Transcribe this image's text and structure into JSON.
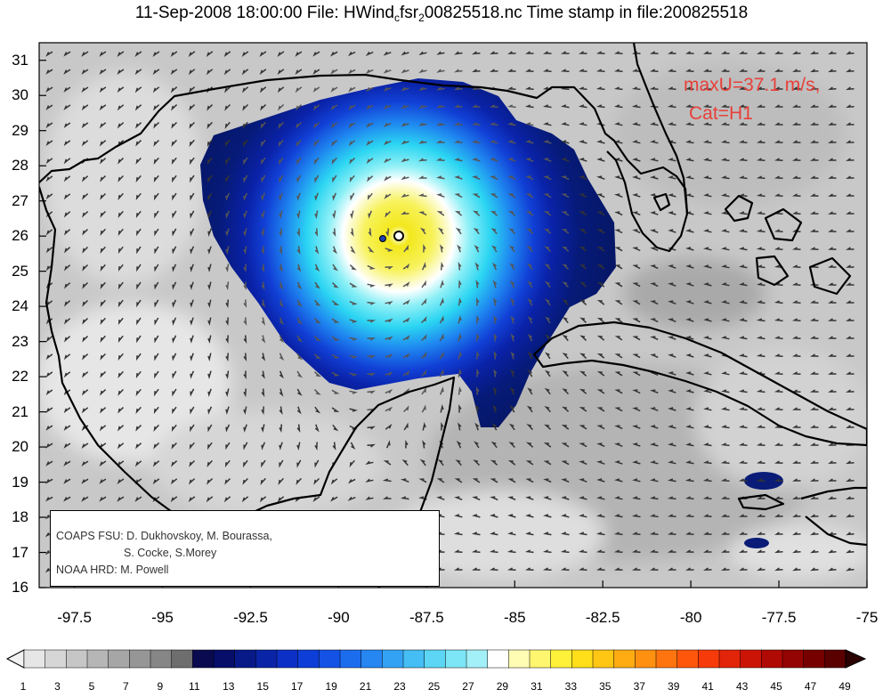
{
  "title": {
    "date_time": "11-Sep-2008 18:00:00",
    "file_label": "File:",
    "file_part1": "HWind",
    "file_sub1": "c",
    "file_part2": "fsr",
    "file_sub2": "2",
    "file_part3": "00825518.nc",
    "stamp_label": "Time stamp in file:",
    "stamp_value": "200825518"
  },
  "y_axis": {
    "ticks": [
      "31",
      "30",
      "29",
      "28",
      "27",
      "26",
      "25",
      "24",
      "23",
      "22",
      "21",
      "20",
      "19",
      "18",
      "17",
      "16"
    ]
  },
  "x_axis": {
    "ticks": [
      "-97.5",
      "-95",
      "-92.5",
      "-90",
      "-87.5",
      "-85",
      "-82.5",
      "-80",
      "-77.5",
      "-75"
    ]
  },
  "annotation": {
    "line1": "maxU=37.1 m/s,",
    "line2": "Cat=H1"
  },
  "credits": {
    "line1": "COAPS FSU: D. Dukhovskoy, M. Bourassa,",
    "line2": "S. Cocke, S.Morey",
    "line3": "NOAA HRD:  M. Powell"
  },
  "colorbar": {
    "labels": [
      "1",
      "3",
      "5",
      "7",
      "9",
      "11",
      "13",
      "15",
      "17",
      "19",
      "21",
      "23",
      "25",
      "27",
      "29",
      "31",
      "33",
      "35",
      "37",
      "39",
      "41",
      "43",
      "45",
      "47",
      "49"
    ]
  },
  "map_view": {
    "lon_range": [
      -98.5,
      -75
    ],
    "lat_range": [
      16,
      31.5
    ],
    "storm_center": {
      "lon": -88.3,
      "lat": 26.0
    },
    "max_wind_ms": 37.1
  },
  "colors": {
    "annotation": "#e8403a",
    "coastline": "#000000",
    "arrows": "#333333"
  }
}
